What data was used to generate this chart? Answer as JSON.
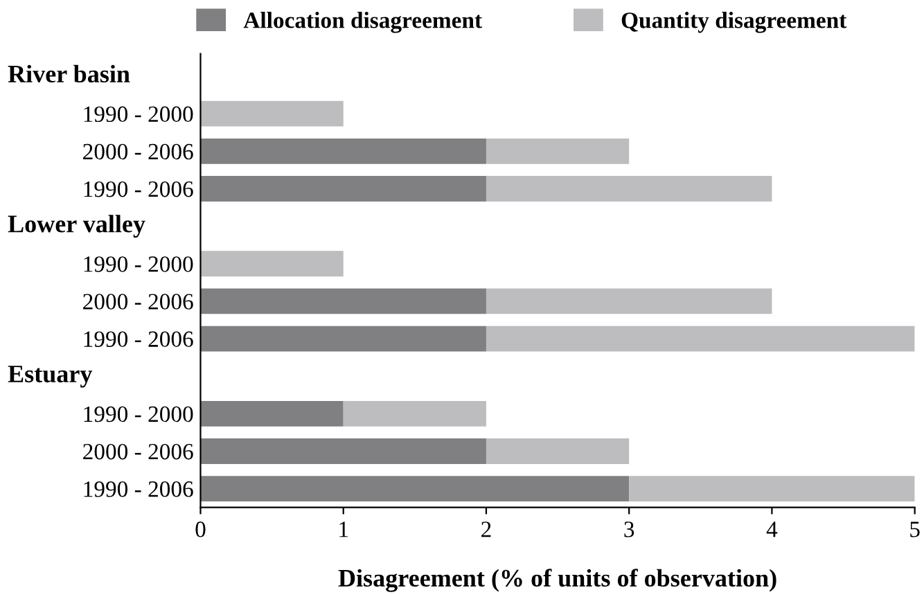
{
  "chart_data": {
    "type": "bar",
    "orientation": "horizontal",
    "stacked": true,
    "xlabel": "Disagreement (% of units of observation)",
    "categories": [
      null,
      "1990 - 2000",
      "2000 - 2006",
      "1990 - 2006",
      null,
      "1990 - 2000",
      "2000 - 2006",
      "1990 - 2006",
      null,
      "1990 - 2000",
      "2000 - 2006",
      "1990 - 2006"
    ],
    "annotations": [
      "River basin",
      "Lower valley",
      "Estuary"
    ],
    "series": [
      {
        "name": "Allocation disagreement",
        "color": "#808083",
        "values": [
          null,
          0,
          2,
          2,
          null,
          0,
          2,
          2,
          null,
          1,
          2,
          3
        ]
      },
      {
        "name": "Quantity disagreement",
        "color": "#bdbdc0",
        "values": [
          null,
          1,
          1,
          2,
          null,
          1,
          2,
          3,
          null,
          1,
          1,
          2
        ]
      }
    ],
    "xlim": [
      0,
      5
    ],
    "xticks": [
      0,
      1,
      2,
      3,
      4,
      5
    ],
    "grid": false,
    "legend": "top"
  }
}
